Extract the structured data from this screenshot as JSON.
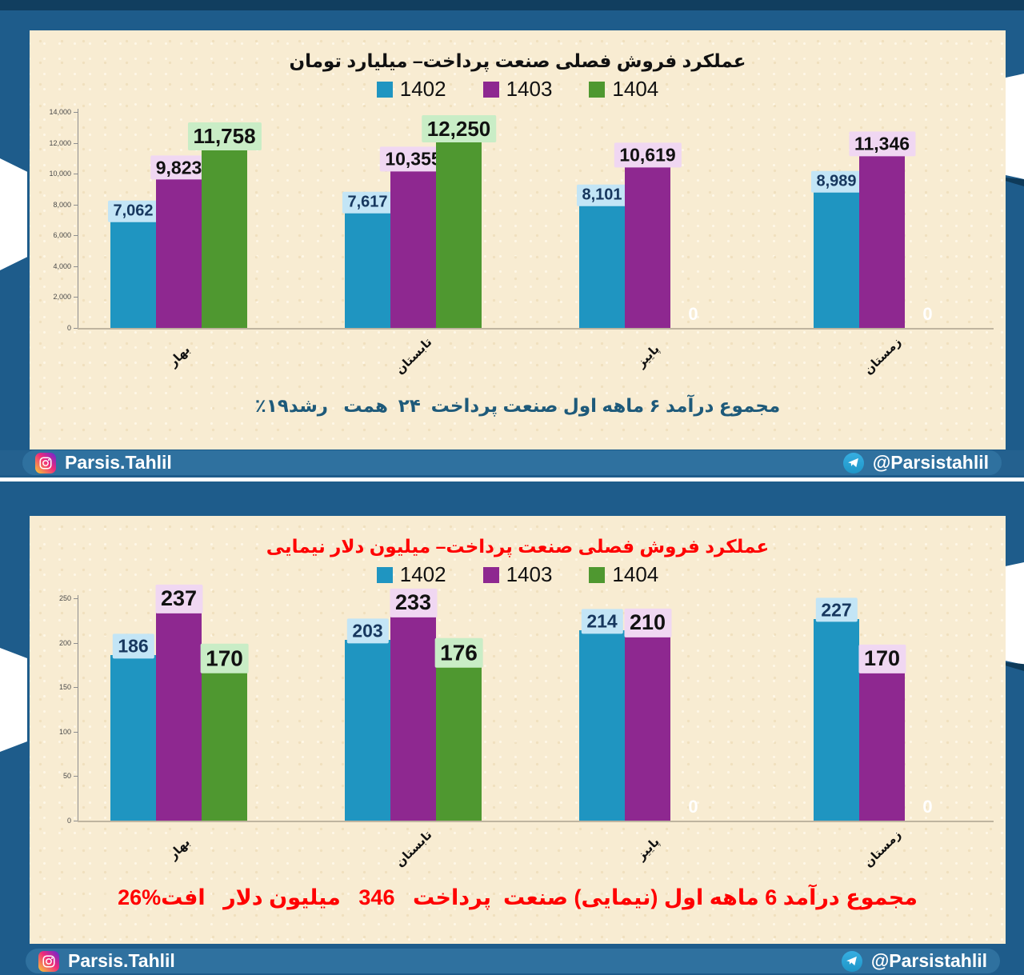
{
  "footer": {
    "instagram_label": "Parsis.Tahlil",
    "telegram_label": "@Parsistahlil"
  },
  "colors": {
    "background": "#1E5C8B",
    "top_strip": "#113E5F",
    "panel": "#F8ECD2",
    "social_bar": "#24618F",
    "social_pill": "#2F719F",
    "separator_line": "#FFFFFF",
    "series_1402": "#1F95C1",
    "series_1403": "#8E2890",
    "series_1404": "#4F9830"
  },
  "chart_data": [
    {
      "type": "bar",
      "title": "عملکرد فروش فصلی صنعت پرداخت– میلیارد تومان",
      "title_color": "#111111",
      "categories": [
        "بهار",
        "تابستان",
        "پاییز",
        "زمستان"
      ],
      "series": [
        {
          "name": "1402",
          "color": "#1F95C1",
          "label_bg": "#C3E5F6",
          "label_color": "#17375E",
          "values": [
            7062,
            7617,
            8101,
            8989
          ],
          "labels": [
            "7,062",
            "7,617",
            "8,101",
            "8,989"
          ]
        },
        {
          "name": "1403",
          "color": "#8E2890",
          "label_bg": "#F0D7F2",
          "label_color": "#111111",
          "values": [
            9823,
            10355,
            10619,
            11346
          ],
          "labels": [
            "9,823",
            "10,355",
            "10,619",
            "11,346"
          ]
        },
        {
          "name": "1404",
          "color": "#4F9830",
          "label_bg": "#C9EDC6",
          "label_color": "#111111",
          "values": [
            11758,
            12250,
            0,
            0
          ],
          "labels": [
            "11,758",
            "12,250",
            "0",
            "0"
          ]
        }
      ],
      "ylim": [
        0,
        14000
      ],
      "yticks": [
        0,
        2000,
        4000,
        6000,
        8000,
        10000,
        12000,
        14000
      ],
      "ytick_labels": [
        "0",
        "2,000",
        "4,000",
        "6,000",
        "8,000",
        "10,000",
        "12,000",
        "14,000"
      ],
      "grid": false,
      "legend_position": "top",
      "zero_label_color": "#FFFFFF",
      "summary": "مجموع درآمد ۶ ماهه اول صنعت پرداخت  ۲۴  همت   رشد۱۹٪",
      "summary_color": "#1E5A7A"
    },
    {
      "type": "bar",
      "title": "عملکرد فروش فصلی صنعت پرداخت– میلیون دلار نیمایی",
      "title_color": "#FF0000",
      "categories": [
        "بهار",
        "تابستان",
        "پاییز",
        "زمستان"
      ],
      "series": [
        {
          "name": "1402",
          "color": "#1F95C1",
          "label_bg": "#C3E5F6",
          "label_color": "#17375E",
          "values": [
            186,
            203,
            214,
            227
          ],
          "labels": [
            "186",
            "203",
            "214",
            "227"
          ]
        },
        {
          "name": "1403",
          "color": "#8E2890",
          "label_bg": "#F0D7F2",
          "label_color": "#111111",
          "values": [
            237,
            233,
            210,
            170
          ],
          "labels": [
            "237",
            "233",
            "210",
            "170"
          ]
        },
        {
          "name": "1404",
          "color": "#4F9830",
          "label_bg": "#C9EDC6",
          "label_color": "#111111",
          "values": [
            170,
            176,
            0,
            0
          ],
          "labels": [
            "170",
            "176",
            "0",
            "0"
          ]
        }
      ],
      "ylim": [
        0,
        250
      ],
      "yticks": [
        0,
        50,
        100,
        150,
        200,
        250
      ],
      "ytick_labels": [
        "0",
        "50",
        "100",
        "150",
        "200",
        "250"
      ],
      "grid": false,
      "legend_position": "top",
      "zero_label_color": "#FFFFFF",
      "summary": "مجموع درآمد 6 ماهه اول (نیمایی) صنعت  پرداخت   346   میلیون دلار   افت%26",
      "summary_color": "#FF0000"
    }
  ]
}
